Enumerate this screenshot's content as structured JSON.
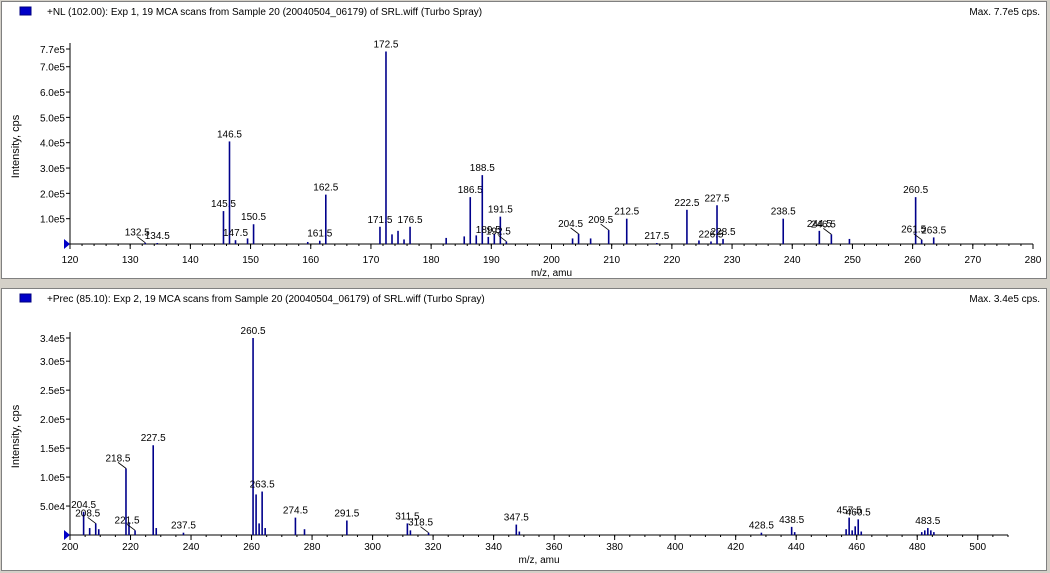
{
  "colors": {
    "trace": "#00008b",
    "axis": "#000000",
    "label": "#000000",
    "marker": "#0000c8"
  },
  "chart_data": [
    {
      "type": "bar",
      "title": "+NL (102.00): Exp 1, 19 MCA scans from Sample 20 (20040504_06179) of SRL.wiff (Turbo Spray)",
      "max_label": "Max. 7.7e5 cps.",
      "xlabel": "m/z, amu",
      "ylabel": "Intensity, cps",
      "xlim": [
        120,
        280
      ],
      "ylim": [
        0,
        770000
      ],
      "x_ticks": [
        120,
        130,
        140,
        150,
        160,
        170,
        180,
        190,
        200,
        210,
        220,
        230,
        240,
        250,
        260,
        270,
        280
      ],
      "y_ticks": [
        {
          "value": 100000,
          "label": "1.0e5"
        },
        {
          "value": 200000,
          "label": "2.0e5"
        },
        {
          "value": 300000,
          "label": "3.0e5"
        },
        {
          "value": 400000,
          "label": "4.0e5"
        },
        {
          "value": 500000,
          "label": "5.0e5"
        },
        {
          "value": 600000,
          "label": "6.0e5"
        },
        {
          "value": 700000,
          "label": "7.0e5"
        },
        {
          "value": 770000,
          "label": "7.7e5"
        }
      ],
      "peaks": [
        {
          "x": 132.5,
          "y": 5000,
          "label": "132.5",
          "leader": true
        },
        {
          "x": 134.5,
          "y": 4000,
          "label": "134.5"
        },
        {
          "x": 145.5,
          "y": 130000,
          "label": "145.5"
        },
        {
          "x": 146.5,
          "y": 405000,
          "label": "146.5"
        },
        {
          "x": 147.5,
          "y": 15000,
          "label": "147.5"
        },
        {
          "x": 149.5,
          "y": 22000
        },
        {
          "x": 150.5,
          "y": 78000,
          "label": "150.5"
        },
        {
          "x": 159.5,
          "y": 8000
        },
        {
          "x": 161.5,
          "y": 13000,
          "label": "161.5"
        },
        {
          "x": 162.5,
          "y": 195000,
          "label": "162.5"
        },
        {
          "x": 171.5,
          "y": 68000,
          "label": "171.5"
        },
        {
          "x": 172.5,
          "y": 760000,
          "label": "172.5"
        },
        {
          "x": 173.5,
          "y": 38000
        },
        {
          "x": 174.5,
          "y": 52000
        },
        {
          "x": 175.5,
          "y": 18000
        },
        {
          "x": 176.5,
          "y": 68000,
          "label": "176.5"
        },
        {
          "x": 182.5,
          "y": 24000
        },
        {
          "x": 185.5,
          "y": 30000
        },
        {
          "x": 186.5,
          "y": 185000,
          "label": "186.5"
        },
        {
          "x": 187.5,
          "y": 34000
        },
        {
          "x": 188.5,
          "y": 272000,
          "label": "188.5"
        },
        {
          "x": 189.5,
          "y": 28000,
          "label": "189.5"
        },
        {
          "x": 190.5,
          "y": 40000
        },
        {
          "x": 191.5,
          "y": 108000,
          "label": "191.5"
        },
        {
          "x": 192.5,
          "y": 10000,
          "label": "192.5",
          "leader": true
        },
        {
          "x": 203.5,
          "y": 22000
        },
        {
          "x": 204.5,
          "y": 40000,
          "label": "204.5",
          "leader": true
        },
        {
          "x": 206.5,
          "y": 22000
        },
        {
          "x": 209.5,
          "y": 55000,
          "label": "209.5",
          "leader": true
        },
        {
          "x": 212.5,
          "y": 100000,
          "label": "212.5"
        },
        {
          "x": 217.5,
          "y": 4000,
          "label": "217.5"
        },
        {
          "x": 222.5,
          "y": 135000,
          "label": "222.5"
        },
        {
          "x": 224.5,
          "y": 14000
        },
        {
          "x": 226.5,
          "y": 10000,
          "label": "226.5"
        },
        {
          "x": 227.5,
          "y": 153000,
          "label": "227.5"
        },
        {
          "x": 228.5,
          "y": 20000,
          "label": "228.5"
        },
        {
          "x": 238.5,
          "y": 100000,
          "label": "238.5"
        },
        {
          "x": 244.5,
          "y": 52000,
          "label": "244.5"
        },
        {
          "x": 246.5,
          "y": 38000,
          "label": "246.5",
          "leader": true
        },
        {
          "x": 249.5,
          "y": 20000
        },
        {
          "x": 260.5,
          "y": 185000,
          "label": "260.5"
        },
        {
          "x": 261.5,
          "y": 17000,
          "label": "261.5",
          "leader": true
        },
        {
          "x": 263.5,
          "y": 26000,
          "label": "263.5"
        }
      ]
    },
    {
      "type": "bar",
      "title": "+Prec (85.10): Exp 2, 19 MCA scans from Sample 20 (20040504_06179) of SRL.wiff (Turbo Spray)",
      "max_label": "Max. 3.4e5 cps.",
      "xlabel": "m/z, amu",
      "ylabel": "Intensity, cps",
      "xlim": [
        200,
        510
      ],
      "ylim": [
        0,
        340000
      ],
      "x_ticks": [
        200,
        220,
        240,
        260,
        280,
        300,
        320,
        340,
        360,
        380,
        400,
        420,
        440,
        460,
        480,
        500
      ],
      "y_ticks": [
        {
          "value": 50000,
          "label": "5.0e4"
        },
        {
          "value": 100000,
          "label": "1.0e5"
        },
        {
          "value": 150000,
          "label": "1.5e5"
        },
        {
          "value": 200000,
          "label": "2.0e5"
        },
        {
          "value": 250000,
          "label": "2.5e5"
        },
        {
          "value": 300000,
          "label": "3.0e5"
        },
        {
          "value": 340000,
          "label": "3.4e5"
        }
      ],
      "peaks": [
        {
          "x": 204.5,
          "y": 40000,
          "label": "204.5"
        },
        {
          "x": 206.5,
          "y": 12000
        },
        {
          "x": 208.5,
          "y": 20000,
          "label": "208.5",
          "leader": true
        },
        {
          "x": 209.5,
          "y": 10000
        },
        {
          "x": 218.5,
          "y": 115000,
          "label": "218.5",
          "leader": true
        },
        {
          "x": 219.5,
          "y": 22000
        },
        {
          "x": 221.5,
          "y": 8000,
          "label": "221.5",
          "leader": true
        },
        {
          "x": 227.5,
          "y": 155000,
          "label": "227.5"
        },
        {
          "x": 228.5,
          "y": 12000
        },
        {
          "x": 237.5,
          "y": 4000,
          "label": "237.5"
        },
        {
          "x": 260.5,
          "y": 340000,
          "label": "260.5"
        },
        {
          "x": 261.5,
          "y": 70000
        },
        {
          "x": 262.5,
          "y": 20000
        },
        {
          "x": 263.5,
          "y": 75000,
          "label": "263.5"
        },
        {
          "x": 264.5,
          "y": 12000
        },
        {
          "x": 274.5,
          "y": 30000,
          "label": "274.5"
        },
        {
          "x": 277.5,
          "y": 10000
        },
        {
          "x": 291.5,
          "y": 25000,
          "label": "291.5"
        },
        {
          "x": 311.5,
          "y": 20000,
          "label": "311.5"
        },
        {
          "x": 312.5,
          "y": 8000
        },
        {
          "x": 318.5,
          "y": 4000,
          "label": "318.5",
          "leader": true
        },
        {
          "x": 347.5,
          "y": 18000,
          "label": "347.5"
        },
        {
          "x": 348.5,
          "y": 6000
        },
        {
          "x": 428.5,
          "y": 4000,
          "label": "428.5"
        },
        {
          "x": 438.5,
          "y": 14000,
          "label": "438.5"
        },
        {
          "x": 439.5,
          "y": 5000
        },
        {
          "x": 456.5,
          "y": 10000
        },
        {
          "x": 457.5,
          "y": 30000,
          "label": "457.5"
        },
        {
          "x": 458.5,
          "y": 8000
        },
        {
          "x": 459.5,
          "y": 15000
        },
        {
          "x": 460.5,
          "y": 27000,
          "label": "460.5"
        },
        {
          "x": 461.5,
          "y": 6000
        },
        {
          "x": 481.5,
          "y": 5000
        },
        {
          "x": 482.5,
          "y": 8000
        },
        {
          "x": 483.5,
          "y": 12000,
          "label": "483.5"
        },
        {
          "x": 484.5,
          "y": 8000
        },
        {
          "x": 485.5,
          "y": 5000
        }
      ]
    }
  ]
}
